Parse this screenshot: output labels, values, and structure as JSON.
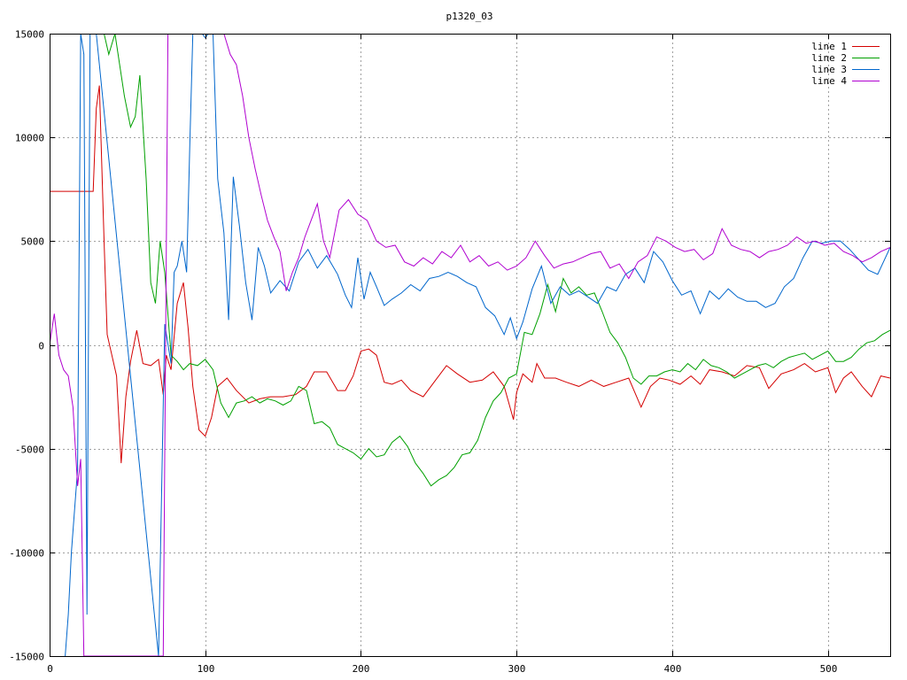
{
  "chart_data": {
    "type": "line",
    "title": "p1320_03",
    "xlabel": "",
    "ylabel": "",
    "xlim": [
      0,
      540
    ],
    "ylim": [
      -15000,
      15000
    ],
    "xticks": [
      0,
      100,
      200,
      300,
      400,
      500
    ],
    "yticks": [
      -15000,
      -10000,
      -5000,
      0,
      5000,
      10000,
      15000
    ],
    "xtick_labels": [
      "0",
      "100",
      "200",
      "300",
      "400",
      "500"
    ],
    "ytick_labels": [
      "-15000",
      "-10000",
      "-5000",
      "0",
      "5000",
      "10000",
      "15000"
    ],
    "grid": true,
    "legend_position": "top-right",
    "series": [
      {
        "name": "line 1",
        "color": "#d40000",
        "x": [
          0,
          27,
          28,
          30,
          32,
          35,
          37,
          40,
          43,
          46,
          49,
          52,
          56,
          60,
          65,
          70,
          73,
          75,
          78,
          82,
          86,
          89,
          92,
          96,
          100,
          104,
          108,
          114,
          120,
          128,
          135,
          142,
          150,
          158,
          165,
          170,
          178,
          185,
          190,
          195,
          200,
          205,
          210,
          215,
          220,
          226,
          232,
          240,
          248,
          255,
          262,
          270,
          278,
          285,
          292,
          298,
          300,
          304,
          310,
          313,
          318,
          325,
          332,
          340,
          348,
          356,
          364,
          372,
          380,
          386,
          392,
          398,
          405,
          412,
          418,
          424,
          432,
          440,
          448,
          456,
          462,
          470,
          478,
          485,
          492,
          500,
          505,
          510,
          515,
          522,
          528,
          534,
          540
        ],
        "y": [
          7400,
          7400,
          7400,
          11400,
          12500,
          5000,
          500,
          -500,
          -1500,
          -5700,
          -2500,
          -800,
          700,
          -900,
          -1000,
          -700,
          -2400,
          -500,
          -1200,
          2000,
          3000,
          800,
          -2000,
          -4100,
          -4400,
          -3500,
          -2000,
          -1600,
          -2200,
          -2800,
          -2600,
          -2500,
          -2500,
          -2400,
          -2000,
          -1300,
          -1300,
          -2200,
          -2200,
          -1500,
          -300,
          -200,
          -500,
          -1800,
          -1900,
          -1700,
          -2200,
          -2500,
          -1700,
          -1000,
          -1400,
          -1800,
          -1700,
          -1300,
          -2000,
          -3600,
          -2300,
          -1400,
          -1800,
          -900,
          -1600,
          -1600,
          -1800,
          -2000,
          -1700,
          -2000,
          -1800,
          -1600,
          -3000,
          -2000,
          -1600,
          -1700,
          -1900,
          -1500,
          -1900,
          -1200,
          -1300,
          -1500,
          -1000,
          -1100,
          -2100,
          -1400,
          -1200,
          -900,
          -1300,
          -1100,
          -2300,
          -1600,
          -1300,
          -2000,
          -2500,
          -1500,
          -1600
        ]
      },
      {
        "name": "line 2",
        "color": "#00a000",
        "x": [
          25,
          30,
          35,
          38,
          42,
          48,
          52,
          55,
          58,
          62,
          65,
          68,
          71,
          74,
          78,
          82,
          86,
          90,
          95,
          100,
          105,
          110,
          115,
          120,
          125,
          130,
          135,
          140,
          145,
          150,
          155,
          160,
          165,
          170,
          175,
          180,
          185,
          190,
          195,
          200,
          205,
          210,
          215,
          220,
          225,
          230,
          235,
          240,
          245,
          250,
          255,
          260,
          265,
          270,
          275,
          280,
          285,
          290,
          295,
          300,
          305,
          310,
          315,
          320,
          325,
          330,
          335,
          340,
          345,
          350,
          355,
          360,
          365,
          370,
          375,
          380,
          385,
          390,
          395,
          400,
          405,
          410,
          415,
          420,
          425,
          430,
          435,
          440,
          445,
          450,
          455,
          460,
          465,
          470,
          475,
          480,
          485,
          490,
          495,
          500,
          505,
          510,
          515,
          520,
          525,
          530,
          535,
          540
        ],
        "y": [
          15000,
          15000,
          15000,
          14000,
          15000,
          12000,
          10500,
          11000,
          13000,
          8000,
          3000,
          2000,
          5000,
          3500,
          -500,
          -800,
          -1200,
          -900,
          -1000,
          -700,
          -1200,
          -2800,
          -3500,
          -2800,
          -2700,
          -2500,
          -2800,
          -2600,
          -2700,
          -2900,
          -2700,
          -2000,
          -2200,
          -3800,
          -3700,
          -4000,
          -4800,
          -5000,
          -5200,
          -5500,
          -5000,
          -5400,
          -5300,
          -4700,
          -4400,
          -4900,
          -5700,
          -6200,
          -6800,
          -6500,
          -6300,
          -5900,
          -5300,
          -5200,
          -4600,
          -3500,
          -2700,
          -2300,
          -1600,
          -1400,
          600,
          500,
          1500,
          2900,
          1600,
          3200,
          2500,
          2800,
          2400,
          2500,
          1600,
          600,
          100,
          -600,
          -1600,
          -1900,
          -1500,
          -1500,
          -1300,
          -1200,
          -1300,
          -900,
          -1200,
          -700,
          -1000,
          -1100,
          -1300,
          -1600,
          -1400,
          -1200,
          -1000,
          -900,
          -1100,
          -800,
          -600,
          -500,
          -400,
          -700,
          -500,
          -300,
          -800,
          -800,
          -600,
          -200,
          100,
          200,
          500,
          700
        ]
      },
      {
        "name": "line 3",
        "color": "#0066cc",
        "x": [
          10,
          12,
          14,
          16,
          18,
          20,
          22,
          24,
          26,
          28,
          30,
          70,
          74,
          78,
          80,
          82,
          85,
          88,
          90,
          92,
          95,
          98,
          100,
          102,
          105,
          108,
          112,
          115,
          118,
          122,
          126,
          130,
          134,
          138,
          142,
          148,
          154,
          160,
          166,
          172,
          178,
          185,
          190,
          194,
          198,
          202,
          206,
          210,
          215,
          220,
          226,
          232,
          238,
          244,
          250,
          256,
          262,
          268,
          274,
          280,
          286,
          292,
          296,
          300,
          304,
          310,
          316,
          322,
          328,
          334,
          340,
          346,
          352,
          358,
          364,
          370,
          376,
          382,
          388,
          394,
          400,
          406,
          412,
          418,
          424,
          430,
          436,
          442,
          448,
          454,
          460,
          466,
          472,
          478,
          484,
          490,
          496,
          502,
          508,
          514,
          520,
          526,
          532,
          540
        ],
        "y": [
          -15000,
          -13000,
          -10000,
          -8000,
          -6000,
          15000,
          14000,
          -13000,
          15000,
          15000,
          15000,
          -15000,
          1000,
          -900,
          3500,
          3800,
          5000,
          3500,
          9500,
          15000,
          15000,
          15000,
          14800,
          15000,
          15000,
          8000,
          5400,
          1200,
          8100,
          5700,
          3000,
          1200,
          4700,
          3800,
          2500,
          3100,
          2600,
          4000,
          4600,
          3700,
          4300,
          3400,
          2400,
          1800,
          4200,
          2200,
          3500,
          2800,
          1900,
          2200,
          2500,
          2900,
          2600,
          3200,
          3300,
          3500,
          3300,
          3000,
          2800,
          1800,
          1400,
          500,
          1300,
          300,
          1100,
          2700,
          3800,
          2000,
          2800,
          2400,
          2600,
          2300,
          2000,
          2800,
          2600,
          3400,
          3700,
          3000,
          4500,
          4000,
          3100,
          2400,
          2600,
          1500,
          2600,
          2200,
          2700,
          2300,
          2100,
          2100,
          1800,
          2000,
          2800,
          3200,
          4200,
          5000,
          4900,
          5000,
          5000,
          4600,
          4100,
          3600,
          3400,
          4700
        ]
      },
      {
        "name": "line 4",
        "color": "#b000d0",
        "x": [
          0,
          3,
          6,
          9,
          12,
          15,
          18,
          20,
          22,
          25,
          28,
          32,
          35,
          38,
          40,
          70,
          73,
          76,
          80,
          85,
          90,
          95,
          100,
          105,
          108,
          112,
          116,
          120,
          124,
          128,
          132,
          136,
          140,
          144,
          148,
          152,
          156,
          160,
          164,
          168,
          172,
          176,
          180,
          186,
          192,
          198,
          204,
          210,
          216,
          222,
          228,
          234,
          240,
          246,
          252,
          258,
          264,
          270,
          276,
          282,
          288,
          294,
          300,
          306,
          312,
          318,
          324,
          330,
          336,
          342,
          348,
          354,
          360,
          366,
          372,
          378,
          384,
          390,
          396,
          402,
          408,
          414,
          420,
          426,
          432,
          438,
          444,
          450,
          456,
          462,
          468,
          474,
          480,
          486,
          492,
          498,
          504,
          510,
          516,
          522,
          528,
          534,
          540
        ],
        "y": [
          0,
          1500,
          -500,
          -1200,
          -1500,
          -3000,
          -6800,
          -5500,
          -15000,
          -15000,
          -15000,
          -15000,
          -15000,
          -15000,
          -15000,
          -15000,
          -15000,
          15000,
          15000,
          15000,
          15000,
          15000,
          15000,
          15000,
          15000,
          15000,
          14000,
          13500,
          12000,
          10000,
          8500,
          7200,
          6000,
          5200,
          4500,
          2600,
          3500,
          4200,
          5200,
          6000,
          6800,
          5000,
          4200,
          6500,
          7000,
          6300,
          6000,
          5000,
          4700,
          4800,
          4000,
          3800,
          4200,
          3900,
          4500,
          4200,
          4800,
          4000,
          4300,
          3800,
          4000,
          3600,
          3800,
          4200,
          5000,
          4300,
          3700,
          3900,
          4000,
          4200,
          4400,
          4500,
          3700,
          3900,
          3200,
          4000,
          4300,
          5200,
          5000,
          4700,
          4500,
          4600,
          4100,
          4400,
          5600,
          4800,
          4600,
          4500,
          4200,
          4500,
          4600,
          4800,
          5200,
          4900,
          5000,
          4800,
          4900,
          4500,
          4300,
          4000,
          4200,
          4500,
          4700
        ]
      }
    ]
  }
}
